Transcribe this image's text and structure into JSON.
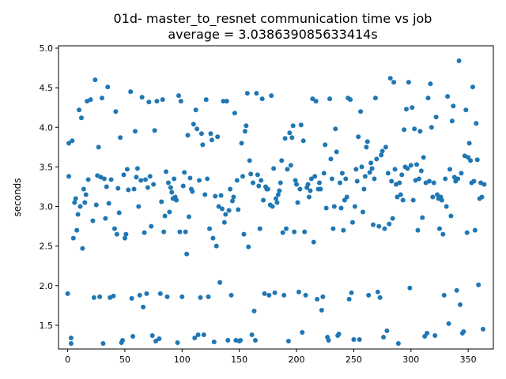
{
  "chart_data": {
    "type": "scatter",
    "title_line1": "01d- master_to_resnet communication time vs job",
    "title_line2": "average = 3.038639085633414s",
    "xlabel": "",
    "ylabel": "seconds",
    "xlim": [
      -8,
      372
    ],
    "ylim": [
      1.2,
      5.03
    ],
    "xticks": [
      0,
      50,
      100,
      150,
      200,
      250,
      300,
      350
    ],
    "yticks": [
      1.5,
      2.0,
      2.5,
      3.0,
      3.5,
      4.0,
      4.5,
      5.0
    ],
    "ytick_labels": [
      "1.5",
      "2.0",
      "2.5",
      "3.0",
      "3.5",
      "4.0",
      "4.5",
      "5.0"
    ],
    "grid": false,
    "legend": "none",
    "marker_color": "#1f77b4",
    "points": [
      [
        0,
        1.9
      ],
      [
        1,
        3.8
      ],
      [
        1,
        3.38
      ],
      [
        3,
        1.27
      ],
      [
        3,
        1.34
      ],
      [
        4,
        3.83
      ],
      [
        5,
        2.6
      ],
      [
        6,
        3.05
      ],
      [
        7,
        3.1
      ],
      [
        8,
        2.7
      ],
      [
        9,
        2.9
      ],
      [
        10,
        4.22
      ],
      [
        11,
        3.0
      ],
      [
        12,
        4.12
      ],
      [
        13,
        2.47
      ],
      [
        14,
        3.22
      ],
      [
        15,
        3.05
      ],
      [
        16,
        3.15
      ],
      [
        17,
        4.33
      ],
      [
        18,
        3.34
      ],
      [
        20,
        4.35
      ],
      [
        22,
        2.82
      ],
      [
        23,
        1.85
      ],
      [
        24,
        4.6
      ],
      [
        25,
        3.02
      ],
      [
        26,
        3.39
      ],
      [
        27,
        3.75
      ],
      [
        28,
        1.86
      ],
      [
        29,
        3.37
      ],
      [
        30,
        4.37
      ],
      [
        31,
        1.27
      ],
      [
        32,
        3.35
      ],
      [
        33,
        2.85
      ],
      [
        34,
        3.25
      ],
      [
        35,
        4.51
      ],
      [
        36,
        3.04
      ],
      [
        37,
        1.85
      ],
      [
        38,
        3.34
      ],
      [
        40,
        1.87
      ],
      [
        41,
        2.72
      ],
      [
        42,
        4.2
      ],
      [
        43,
        2.65
      ],
      [
        44,
        3.23
      ],
      [
        45,
        2.92
      ],
      [
        46,
        3.87
      ],
      [
        47,
        1.28
      ],
      [
        48,
        1.31
      ],
      [
        49,
        3.4
      ],
      [
        50,
        2.6
      ],
      [
        51,
        2.65
      ],
      [
        52,
        3.47
      ],
      [
        53,
        3.21
      ],
      [
        55,
        4.45
      ],
      [
        56,
        1.84
      ],
      [
        57,
        1.36
      ],
      [
        58,
        3.22
      ],
      [
        59,
        3.95
      ],
      [
        60,
        3.37
      ],
      [
        61,
        3.48
      ],
      [
        62,
        3.0
      ],
      [
        63,
        1.88
      ],
      [
        64,
        3.33
      ],
      [
        65,
        4.38
      ],
      [
        66,
        1.73
      ],
      [
        67,
        2.67
      ],
      [
        68,
        3.34
      ],
      [
        69,
        1.9
      ],
      [
        70,
        3.24
      ],
      [
        71,
        4.32
      ],
      [
        72,
        3.38
      ],
      [
        73,
        2.75
      ],
      [
        74,
        1.37
      ],
      [
        75,
        3.28
      ],
      [
        76,
        3.96
      ],
      [
        77,
        1.3
      ],
      [
        78,
        4.33
      ],
      [
        80,
        1.33
      ],
      [
        81,
        1.9
      ],
      [
        82,
        3.06
      ],
      [
        83,
        4.35
      ],
      [
        84,
        2.68
      ],
      [
        85,
        2.88
      ],
      [
        86,
        3.44
      ],
      [
        87,
        1.86
      ],
      [
        88,
        3.3
      ],
      [
        89,
        2.93
      ],
      [
        90,
        3.24
      ],
      [
        91,
        3.18
      ],
      [
        92,
        3.1
      ],
      [
        93,
        3.35
      ],
      [
        94,
        3.12
      ],
      [
        95,
        3.08
      ],
      [
        96,
        1.28
      ],
      [
        97,
        4.4
      ],
      [
        98,
        2.68
      ],
      [
        99,
        4.33
      ],
      [
        100,
        1.86
      ],
      [
        101,
        3.26
      ],
      [
        102,
        3.43
      ],
      [
        103,
        2.68
      ],
      [
        104,
        2.4
      ],
      [
        105,
        3.9
      ],
      [
        106,
        2.87
      ],
      [
        107,
        3.36
      ],
      [
        108,
        3.22
      ],
      [
        109,
        3.19
      ],
      [
        110,
        4.04
      ],
      [
        111,
        1.34
      ],
      [
        112,
        4.22
      ],
      [
        113,
        3.98
      ],
      [
        114,
        1.38
      ],
      [
        115,
        3.33
      ],
      [
        116,
        1.85
      ],
      [
        117,
        3.92
      ],
      [
        118,
        3.78
      ],
      [
        119,
        1.38
      ],
      [
        120,
        3.15
      ],
      [
        121,
        4.35
      ],
      [
        122,
        3.35
      ],
      [
        123,
        1.86
      ],
      [
        124,
        2.72
      ],
      [
        125,
        3.92
      ],
      [
        126,
        3.84
      ],
      [
        127,
        2.6
      ],
      [
        128,
        1.29
      ],
      [
        129,
        3.13
      ],
      [
        130,
        2.5
      ],
      [
        131,
        3.88
      ],
      [
        132,
        3.0
      ],
      [
        133,
        2.04
      ],
      [
        134,
        3.14
      ],
      [
        135,
        2.97
      ],
      [
        136,
        4.33
      ],
      [
        137,
        2.8
      ],
      [
        138,
        2.9
      ],
      [
        139,
        4.33
      ],
      [
        140,
        1.31
      ],
      [
        141,
        2.95
      ],
      [
        142,
        3.22
      ],
      [
        143,
        1.88
      ],
      [
        144,
        3.07
      ],
      [
        145,
        3.12
      ],
      [
        146,
        4.18
      ],
      [
        147,
        1.31
      ],
      [
        148,
        3.33
      ],
      [
        149,
        2.96
      ],
      [
        150,
        1.3
      ],
      [
        151,
        1.31
      ],
      [
        152,
        3.8
      ],
      [
        153,
        3.38
      ],
      [
        154,
        2.65
      ],
      [
        155,
        3.95
      ],
      [
        156,
        4.02
      ],
      [
        157,
        4.43
      ],
      [
        158,
        2.49
      ],
      [
        159,
        3.58
      ],
      [
        160,
        3.41
      ],
      [
        161,
        1.38
      ],
      [
        162,
        3.3
      ],
      [
        163,
        1.68
      ],
      [
        164,
        1.31
      ],
      [
        165,
        4.43
      ],
      [
        166,
        3.4
      ],
      [
        167,
        3.26
      ],
      [
        168,
        2.72
      ],
      [
        169,
        3.33
      ],
      [
        170,
        4.36
      ],
      [
        171,
        3.08
      ],
      [
        172,
        1.9
      ],
      [
        173,
        3.25
      ],
      [
        174,
        3.22
      ],
      [
        175,
        3.22
      ],
      [
        176,
        1.88
      ],
      [
        177,
        3.02
      ],
      [
        178,
        4.4
      ],
      [
        179,
        3.0
      ],
      [
        180,
        3.48
      ],
      [
        181,
        1.91
      ],
      [
        182,
        3.1
      ],
      [
        183,
        3.05
      ],
      [
        184,
        3.15
      ],
      [
        185,
        3.2
      ],
      [
        186,
        3.3
      ],
      [
        187,
        3.58
      ],
      [
        188,
        2.67
      ],
      [
        189,
        1.88
      ],
      [
        190,
        3.86
      ],
      [
        191,
        2.72
      ],
      [
        192,
        3.47
      ],
      [
        193,
        1.3
      ],
      [
        194,
        3.93
      ],
      [
        195,
        3.52
      ],
      [
        196,
        3.87
      ],
      [
        197,
        4.02
      ],
      [
        198,
        2.68
      ],
      [
        199,
        3.33
      ],
      [
        200,
        3.28
      ],
      [
        201,
        3.05
      ],
      [
        202,
        1.92
      ],
      [
        203,
        3.22
      ],
      [
        204,
        4.03
      ],
      [
        205,
        1.41
      ],
      [
        206,
        3.83
      ],
      [
        207,
        2.68
      ],
      [
        208,
        1.88
      ],
      [
        209,
        3.24
      ],
      [
        210,
        3.28
      ],
      [
        211,
        3.12
      ],
      [
        212,
        3.2
      ],
      [
        213,
        3.35
      ],
      [
        214,
        4.36
      ],
      [
        215,
        2.55
      ],
      [
        216,
        3.38
      ],
      [
        217,
        4.33
      ],
      [
        218,
        1.83
      ],
      [
        219,
        3.22
      ],
      [
        220,
        3.3
      ],
      [
        221,
        3.22
      ],
      [
        222,
        1.69
      ],
      [
        223,
        1.86
      ],
      [
        224,
        3.42
      ],
      [
        225,
        3.78
      ],
      [
        226,
        2.98
      ],
      [
        227,
        1.35
      ],
      [
        228,
        1.31
      ],
      [
        229,
        4.36
      ],
      [
        230,
        3.6
      ],
      [
        231,
        3.35
      ],
      [
        232,
        2.72
      ],
      [
        233,
        3.0
      ],
      [
        234,
        3.98
      ],
      [
        235,
        3.69
      ],
      [
        236,
        1.37
      ],
      [
        237,
        1.39
      ],
      [
        238,
        3.3
      ],
      [
        239,
        2.98
      ],
      [
        240,
        3.42
      ],
      [
        241,
        2.7
      ],
      [
        242,
        3.08
      ],
      [
        243,
        3.35
      ],
      [
        244,
        3.12
      ],
      [
        245,
        4.37
      ],
      [
        246,
        1.83
      ],
      [
        247,
        4.35
      ],
      [
        248,
        1.91
      ],
      [
        249,
        2.8
      ],
      [
        250,
        1.32
      ],
      [
        251,
        3.0
      ],
      [
        252,
        3.47
      ],
      [
        253,
        3.32
      ],
      [
        254,
        3.88
      ],
      [
        255,
        1.32
      ],
      [
        256,
        4.2
      ],
      [
        257,
        3.5
      ],
      [
        258,
        2.93
      ],
      [
        259,
        3.22
      ],
      [
        260,
        3.38
      ],
      [
        261,
        3.75
      ],
      [
        262,
        3.82
      ],
      [
        263,
        1.88
      ],
      [
        264,
        3.43
      ],
      [
        265,
        3.55
      ],
      [
        266,
        3.48
      ],
      [
        267,
        2.77
      ],
      [
        268,
        3.35
      ],
      [
        269,
        4.37
      ],
      [
        270,
        3.6
      ],
      [
        271,
        1.92
      ],
      [
        272,
        2.75
      ],
      [
        273,
        1.85
      ],
      [
        274,
        3.65
      ],
      [
        275,
        3.7
      ],
      [
        276,
        1.35
      ],
      [
        277,
        2.72
      ],
      [
        278,
        3.75
      ],
      [
        279,
        1.43
      ],
      [
        280,
        3.42
      ],
      [
        281,
        2.78
      ],
      [
        282,
        4.62
      ],
      [
        283,
        3.32
      ],
      [
        284,
        2.85
      ],
      [
        285,
        4.57
      ],
      [
        286,
        3.47
      ],
      [
        287,
        3.28
      ],
      [
        288,
        3.12
      ],
      [
        289,
        1.27
      ],
      [
        290,
        3.3
      ],
      [
        291,
        3.15
      ],
      [
        292,
        3.4
      ],
      [
        293,
        3.08
      ],
      [
        294,
        3.97
      ],
      [
        295,
        3.5
      ],
      [
        296,
        4.23
      ],
      [
        297,
        3.48
      ],
      [
        298,
        4.57
      ],
      [
        299,
        1.97
      ],
      [
        300,
        3.52
      ],
      [
        301,
        4.25
      ],
      [
        302,
        3.08
      ],
      [
        303,
        3.98
      ],
      [
        304,
        3.33
      ],
      [
        305,
        3.53
      ],
      [
        306,
        2.7
      ],
      [
        307,
        3.35
      ],
      [
        308,
        3.95
      ],
      [
        309,
        3.45
      ],
      [
        310,
        2.86
      ],
      [
        311,
        3.62
      ],
      [
        312,
        1.36
      ],
      [
        313,
        3.3
      ],
      [
        314,
        1.4
      ],
      [
        315,
        4.37
      ],
      [
        316,
        3.32
      ],
      [
        317,
        4.55
      ],
      [
        318,
        4.0
      ],
      [
        319,
        3.12
      ],
      [
        320,
        3.3
      ],
      [
        321,
        1.37
      ],
      [
        322,
        4.13
      ],
      [
        323,
        3.15
      ],
      [
        324,
        3.1
      ],
      [
        325,
        2.72
      ],
      [
        326,
        3.12
      ],
      [
        327,
        3.08
      ],
      [
        328,
        2.65
      ],
      [
        329,
        1.88
      ],
      [
        330,
        3.35
      ],
      [
        331,
        3.0
      ],
      [
        332,
        4.39
      ],
      [
        333,
        1.52
      ],
      [
        334,
        3.47
      ],
      [
        335,
        2.88
      ],
      [
        336,
        4.08
      ],
      [
        337,
        4.27
      ],
      [
        338,
        3.37
      ],
      [
        339,
        3.32
      ],
      [
        340,
        1.94
      ],
      [
        341,
        3.35
      ],
      [
        342,
        4.84
      ],
      [
        343,
        1.76
      ],
      [
        344,
        3.42
      ],
      [
        345,
        1.4
      ],
      [
        346,
        1.42
      ],
      [
        347,
        3.64
      ],
      [
        348,
        4.22
      ],
      [
        349,
        2.67
      ],
      [
        350,
        3.62
      ],
      [
        351,
        3.8
      ],
      [
        352,
        3.58
      ],
      [
        353,
        3.3
      ],
      [
        354,
        4.51
      ],
      [
        355,
        3.32
      ],
      [
        356,
        2.7
      ],
      [
        357,
        4.05
      ],
      [
        358,
        3.59
      ],
      [
        359,
        2.01
      ],
      [
        360,
        3.1
      ],
      [
        361,
        3.3
      ],
      [
        362,
        3.12
      ],
      [
        363,
        1.45
      ],
      [
        364,
        3.28
      ]
    ]
  }
}
